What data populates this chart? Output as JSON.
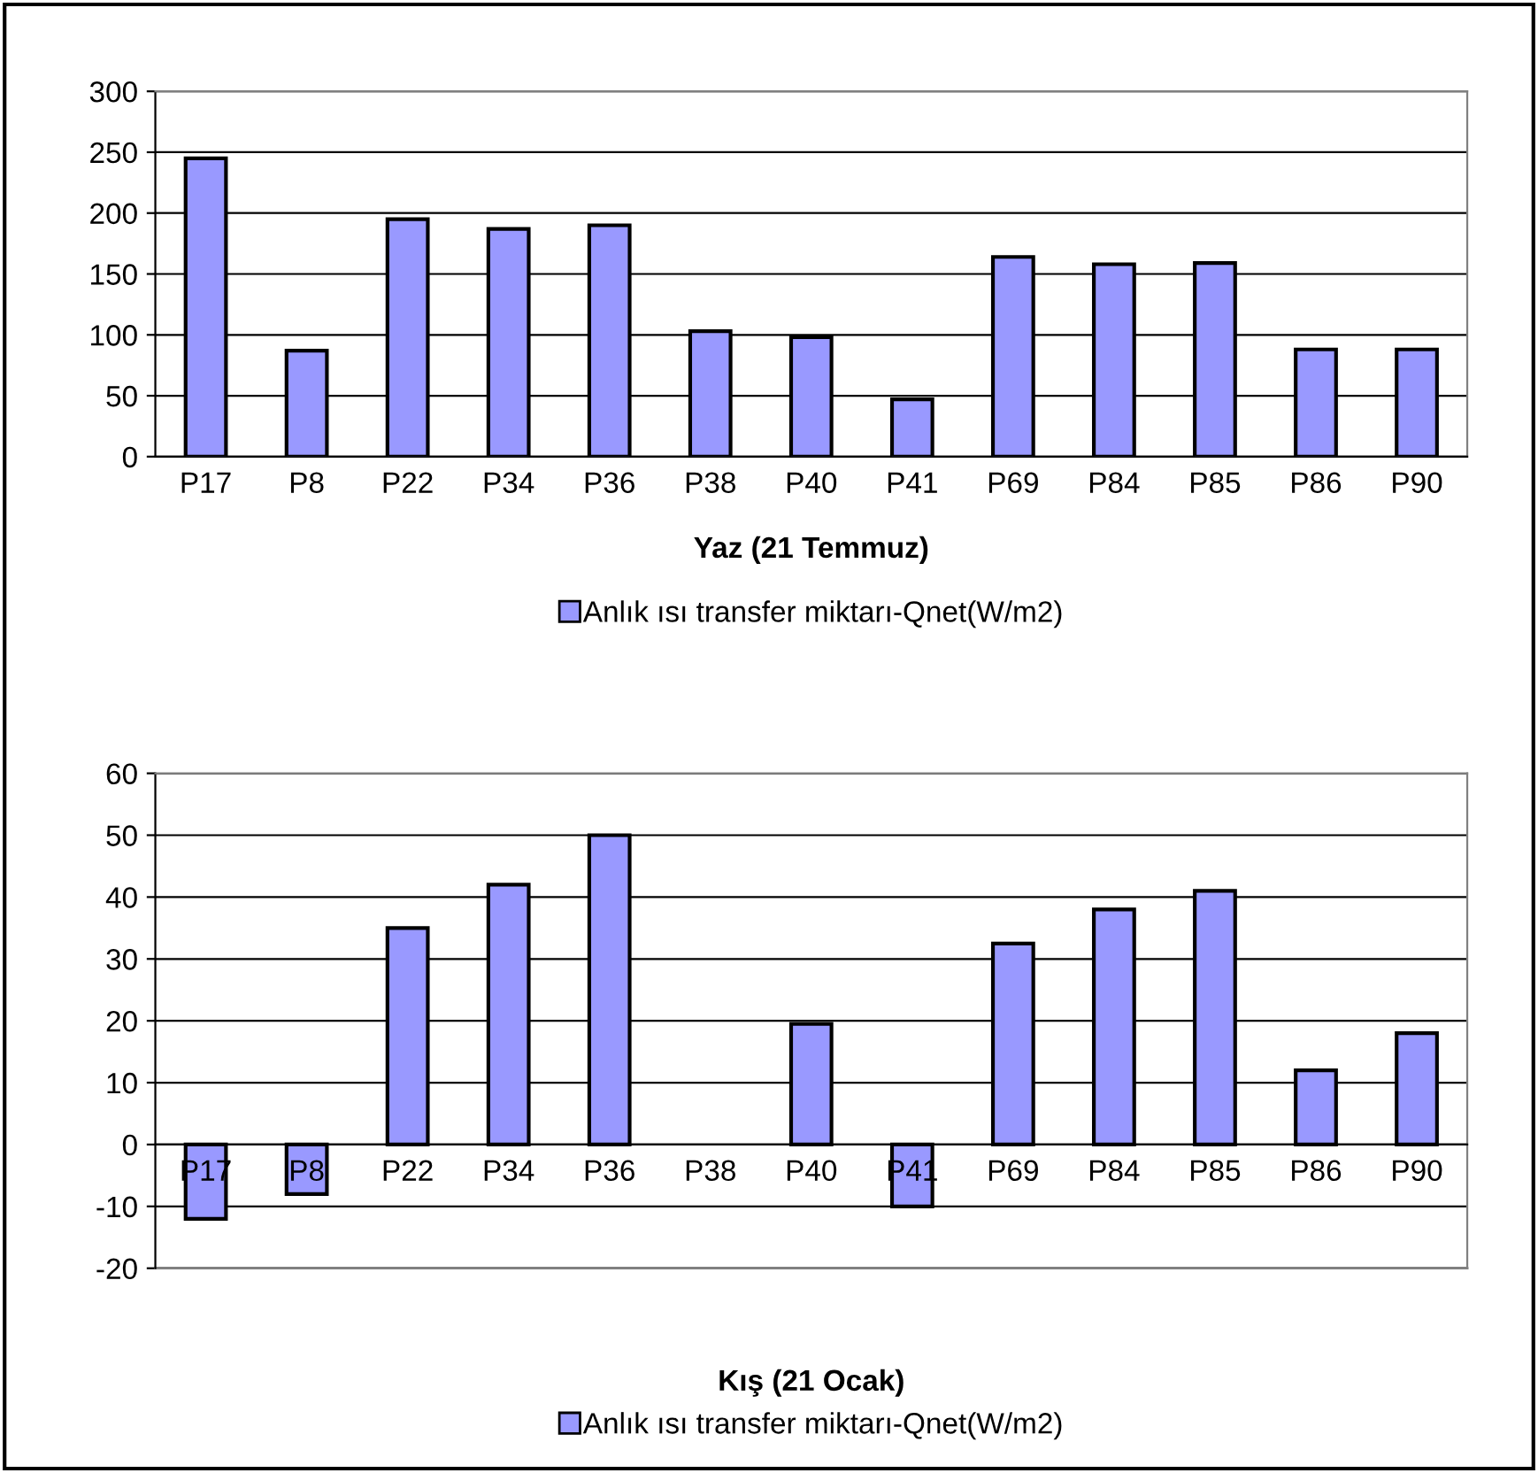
{
  "chart_data": [
    {
      "type": "bar",
      "xlabel": "Yaz (21 Temmuz)",
      "categories": [
        "P17",
        "P8",
        "P22",
        "P34",
        "P36",
        "P38",
        "P40",
        "P41",
        "P69",
        "P84",
        "P85",
        "P86",
        "P90"
      ],
      "series": [
        {
          "name": "Anlık ısı transfer miktarı-Qnet(W/m2)",
          "color": "#9999ff",
          "values": [
            245,
            87,
            195,
            187,
            190,
            103,
            98,
            47,
            164,
            158,
            159,
            88,
            88
          ]
        }
      ],
      "ylim": [
        0,
        300
      ],
      "yticks": [
        0,
        50,
        100,
        150,
        200,
        250,
        300
      ],
      "grid": "y",
      "legend": "bottom"
    },
    {
      "type": "bar",
      "xlabel": "Kış (21 Ocak)",
      "categories": [
        "P17",
        "P8",
        "P22",
        "P34",
        "P36",
        "P38",
        "P40",
        "P41",
        "P69",
        "P84",
        "P85",
        "P86",
        "P90"
      ],
      "series": [
        {
          "name": "Anlık ısı transfer miktarı-Qnet(W/m2)",
          "color": "#9999ff",
          "values": [
            -12,
            -8,
            35,
            42,
            50,
            null,
            19.5,
            -10,
            32.5,
            38,
            41,
            12,
            18
          ]
        }
      ],
      "ylim": [
        -20,
        60
      ],
      "yticks": [
        -20,
        -10,
        0,
        10,
        20,
        30,
        40,
        50,
        60
      ],
      "grid": "y",
      "legend": "bottom"
    }
  ]
}
